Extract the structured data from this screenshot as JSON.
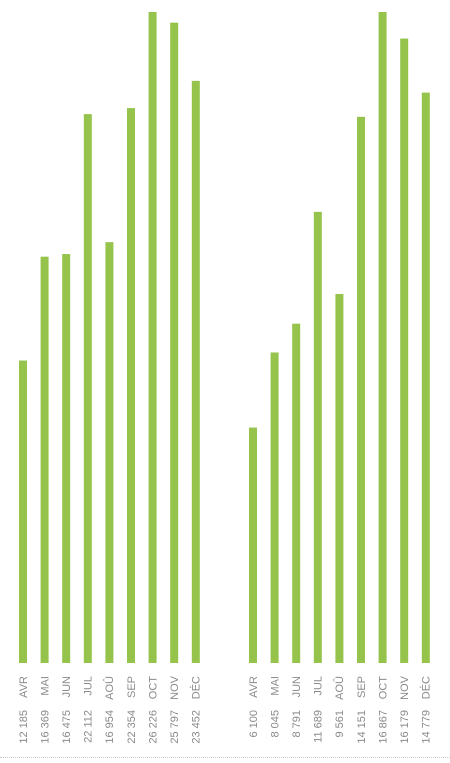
{
  "chart_data": [
    {
      "type": "bar",
      "categories": [
        "AVR",
        "MAI",
        "JUN",
        "JUL",
        "AOÛ",
        "SEP",
        "OCT",
        "NOV",
        "DÉC"
      ],
      "values": [
        12185,
        16369,
        16475,
        22112,
        16954,
        22354,
        26226,
        25797,
        23452
      ],
      "value_labels": [
        "12 185",
        "16 369",
        "16 475",
        "22 112",
        "16 954",
        "22 354",
        "26 226",
        "25 797",
        "23 452"
      ],
      "title": "",
      "xlabel": "",
      "ylabel": "",
      "grid": false,
      "legend": "none",
      "orientation": "vertical",
      "label_orientation": "rotated"
    },
    {
      "type": "bar",
      "categories": [
        "AVR",
        "MAI",
        "JUN",
        "JUL",
        "AOÛ",
        "SEP",
        "OCT",
        "NOV",
        "DÉC"
      ],
      "values": [
        6100,
        8045,
        8791,
        11689,
        9561,
        14151,
        16867,
        16179,
        14779
      ],
      "value_labels": [
        "6 100",
        "8 045",
        "8 791",
        "11 689",
        "9 561",
        "14 151",
        "16 867",
        "16 179",
        "14 779"
      ],
      "title": "",
      "xlabel": "",
      "ylabel": "",
      "grid": false,
      "legend": "none",
      "orientation": "vertical",
      "label_orientation": "rotated"
    }
  ],
  "colors": {
    "bar": "#96c34b",
    "label_text": "#8a8a8a",
    "divider": "#c9c9c9"
  }
}
